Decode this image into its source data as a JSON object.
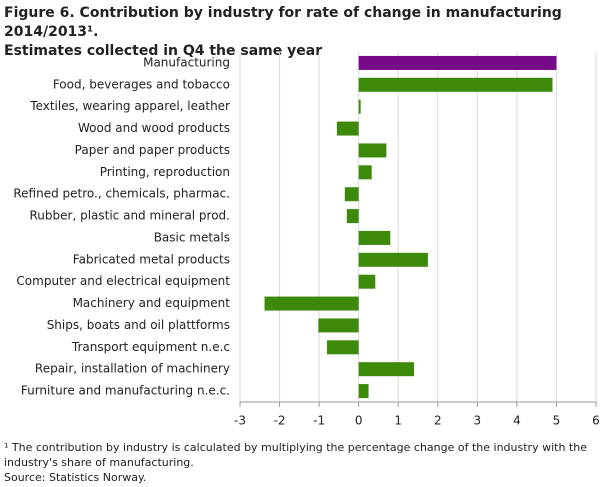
{
  "chart_data": {
    "type": "barh",
    "title": "Figure 6. Contribution by industry for rate of change in manufacturing  2014/2013¹.",
    "subtitle": "Estimates collected in Q4 the same year",
    "categories": [
      "Manufacturing",
      "Food, beverages and tobacco",
      "Textiles, wearing apparel, leather",
      "Wood and wood products",
      "Paper and paper products",
      "Printing, reproduction",
      "Refined petro., chemicals, pharmac.",
      "Rubber, plastic and mineral prod.",
      "Basic metals",
      "Fabricated metal products",
      "Computer and electrical equipment",
      "Machinery and equipment",
      "Ships, boats and oil plattforms",
      "Transport equipment n.e.c",
      "Repair, installation of machinery",
      "Furniture and manufacturing n.e.c."
    ],
    "values": [
      5.0,
      4.9,
      0.05,
      -0.55,
      0.7,
      0.33,
      -0.35,
      -0.3,
      0.8,
      1.75,
      0.42,
      -2.38,
      -1.02,
      -0.8,
      1.4,
      0.25
    ],
    "colors": [
      "#770a88",
      "#3d8a0b",
      "#3d8a0b",
      "#3d8a0b",
      "#3d8a0b",
      "#3d8a0b",
      "#3d8a0b",
      "#3d8a0b",
      "#3d8a0b",
      "#3d8a0b",
      "#3d8a0b",
      "#3d8a0b",
      "#3d8a0b",
      "#3d8a0b",
      "#3d8a0b",
      "#3d8a0b"
    ],
    "xlim": [
      -3,
      6
    ],
    "xticks": [
      -3,
      -2,
      -1,
      0,
      1,
      2,
      3,
      4,
      5,
      6
    ],
    "grid": true,
    "footnote": "¹ The contribution by industry is calculated by multiplying the percentage change of the industry with the industry's share of manufacturing.",
    "source": "Source: Statistics Norway."
  }
}
